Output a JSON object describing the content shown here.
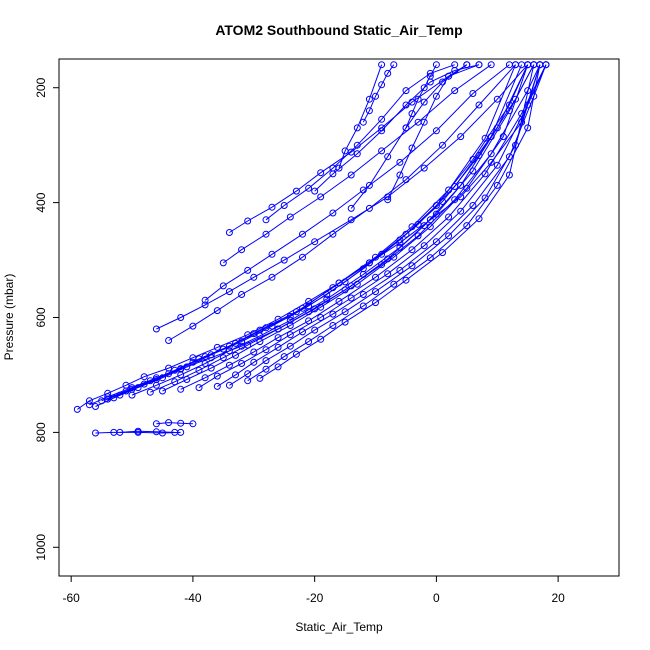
{
  "chart_data": {
    "type": "line",
    "title": "ATOM2 Southbound Static_Air_Temp",
    "xlabel": "Static_Air_Temp",
    "ylabel": "Pressure (mbar)",
    "xlim": [
      -62,
      30
    ],
    "ylim": [
      1050,
      150
    ],
    "y_reversed": true,
    "x_ticks": [
      "-60",
      "-40",
      "-20",
      "0",
      "20"
    ],
    "x_tick_values": [
      -60,
      -40,
      -20,
      0,
      20
    ],
    "y_ticks": [
      "200",
      "400",
      "600",
      "800",
      "1000"
    ],
    "y_tick_values": [
      200,
      400,
      600,
      800,
      1000
    ],
    "grid": false,
    "color": "#0000ff",
    "marker": "open-circle",
    "series": [
      {
        "x": [
          -59,
          -57,
          -54,
          -51,
          -48,
          -44,
          -40,
          -36,
          -31,
          -26,
          -21,
          -16,
          -11,
          -6,
          -1,
          4,
          9,
          14,
          17
        ],
        "y": [
          760,
          745,
          732,
          718,
          703,
          688,
          670,
          652,
          630,
          603,
          572,
          540,
          505,
          470,
          430,
          390,
          330,
          260,
          160
        ]
      },
      {
        "x": [
          -57,
          -54,
          -50,
          -46,
          -42,
          -37,
          -32,
          -26,
          -20,
          -14,
          -8,
          -2,
          4,
          10,
          15
        ],
        "y": [
          752,
          738,
          722,
          705,
          690,
          670,
          650,
          620,
          585,
          545,
          498,
          440,
          370,
          270,
          160
        ]
      },
      {
        "x": [
          -55,
          -51,
          -47,
          -43,
          -39,
          -34,
          -29,
          -23,
          -17,
          -11,
          -5,
          1,
          7,
          13,
          16
        ],
        "y": [
          745,
          728,
          710,
          692,
          672,
          650,
          622,
          590,
          548,
          505,
          455,
          398,
          318,
          220,
          160
        ]
      },
      {
        "x": [
          -53,
          -49,
          -45,
          -41,
          -37,
          -32,
          -27,
          -21,
          -15,
          -9,
          -3,
          3,
          9,
          14
        ],
        "y": [
          740,
          722,
          705,
          686,
          665,
          642,
          615,
          580,
          538,
          490,
          438,
          372,
          285,
          160
        ]
      },
      {
        "x": [
          -56,
          -52,
          -48,
          -44,
          -40,
          -35,
          -30,
          -24,
          -18,
          -12,
          -6,
          0,
          6,
          12,
          15
        ],
        "y": [
          755,
          735,
          716,
          698,
          678,
          655,
          628,
          598,
          560,
          515,
          465,
          405,
          325,
          230,
          160
        ]
      },
      {
        "x": [
          -50,
          -46,
          -42,
          -38,
          -34,
          -29,
          -24,
          -18,
          -12,
          -6,
          0,
          6,
          12,
          16
        ],
        "y": [
          735,
          718,
          700,
          680,
          658,
          632,
          605,
          568,
          525,
          478,
          420,
          345,
          240,
          160
        ]
      },
      {
        "x": [
          -54,
          -50,
          -46,
          -42,
          -38,
          -33,
          -28,
          -22,
          -16,
          -10,
          -4,
          2,
          8,
          13
        ],
        "y": [
          742,
          725,
          708,
          689,
          668,
          645,
          618,
          584,
          540,
          495,
          442,
          378,
          288,
          160
        ]
      },
      {
        "x": [
          -47,
          -43,
          -39,
          -35,
          -31,
          -26,
          -21,
          -15,
          -9,
          -3,
          3,
          9,
          15,
          17
        ],
        "y": [
          730,
          712,
          692,
          670,
          648,
          620,
          590,
          552,
          508,
          458,
          395,
          315,
          205,
          160
        ]
      },
      {
        "x": [
          -45,
          -41,
          -37,
          -33,
          -29,
          -24,
          -19,
          -13,
          -7,
          -1,
          5,
          11,
          15
        ],
        "y": [
          728,
          708,
          688,
          666,
          642,
          614,
          582,
          542,
          495,
          442,
          375,
          285,
          160
        ]
      },
      {
        "x": [
          -42,
          -38,
          -34,
          -30,
          -26,
          -21,
          -16,
          -10,
          -4,
          2,
          8,
          14,
          18
        ],
        "y": [
          725,
          705,
          683,
          660,
          635,
          606,
          572,
          530,
          482,
          425,
          350,
          245,
          160
        ]
      },
      {
        "x": [
          -39,
          -36,
          -32,
          -28,
          -24,
          -19,
          -14,
          -8,
          -2,
          4,
          10,
          15,
          18
        ],
        "y": [
          722,
          702,
          680,
          656,
          630,
          600,
          566,
          524,
          475,
          415,
          335,
          230,
          160
        ]
      },
      {
        "x": [
          -36,
          -33,
          -30,
          -26,
          -22,
          -17,
          -12,
          -6,
          0,
          6,
          12,
          16,
          18
        ],
        "y": [
          720,
          700,
          678,
          652,
          625,
          594,
          560,
          518,
          468,
          405,
          320,
          215,
          160
        ]
      },
      {
        "x": [
          -34,
          -31,
          -28,
          -24,
          -20,
          -15,
          -10,
          -4,
          2,
          8,
          13,
          17
        ],
        "y": [
          718,
          698,
          675,
          650,
          622,
          590,
          555,
          510,
          458,
          392,
          300,
          160
        ]
      },
      {
        "x": [
          -31,
          -28,
          -25,
          -21,
          -17,
          -12,
          -7,
          -1,
          5,
          10,
          15,
          17
        ],
        "y": [
          710,
          690,
          668,
          642,
          614,
          580,
          542,
          496,
          440,
          370,
          270,
          160
        ]
      },
      {
        "x": [
          -29,
          -26,
          -23,
          -19,
          -15,
          -10,
          -5,
          1,
          7,
          12,
          16
        ],
        "y": [
          706,
          686,
          664,
          638,
          608,
          574,
          535,
          487,
          428,
          352,
          160
        ]
      },
      {
        "x": [
          -52,
          -49,
          -46,
          -43
        ],
        "y": [
          800,
          798,
          799,
          800
        ]
      },
      {
        "x": [
          -56,
          -53,
          -49,
          -45,
          -42
        ],
        "y": [
          801,
          800,
          800,
          801,
          800
        ]
      },
      {
        "x": [
          -46,
          -44,
          -42,
          -40
        ],
        "y": [
          785,
          783,
          784,
          785
        ]
      },
      {
        "x": [
          -46,
          -42,
          -38,
          -34,
          -30,
          -25,
          -20,
          -14,
          -8,
          -2,
          4,
          10,
          15
        ],
        "y": [
          620,
          600,
          578,
          555,
          530,
          500,
          468,
          430,
          390,
          340,
          285,
          220,
          160
        ]
      },
      {
        "x": [
          -44,
          -40,
          -36,
          -32,
          -27,
          -22,
          -17,
          -11,
          -5,
          1,
          7,
          13
        ],
        "y": [
          640,
          615,
          588,
          560,
          530,
          495,
          455,
          410,
          360,
          300,
          230,
          160
        ]
      },
      {
        "x": [
          -38,
          -35,
          -31,
          -27,
          -22,
          -17,
          -12,
          -6,
          0,
          6,
          12
        ],
        "y": [
          570,
          545,
          518,
          490,
          455,
          418,
          378,
          330,
          275,
          210,
          160
        ]
      },
      {
        "x": [
          -35,
          -32,
          -28,
          -24,
          -19,
          -14,
          -9,
          -3,
          3,
          9
        ],
        "y": [
          505,
          482,
          455,
          425,
          390,
          352,
          310,
          260,
          205,
          160
        ]
      },
      {
        "x": [
          -34,
          -31,
          -27,
          -23,
          -19,
          -14,
          -9,
          -4,
          2,
          7
        ],
        "y": [
          452,
          432,
          408,
          380,
          348,
          312,
          270,
          225,
          180,
          160
        ]
      },
      {
        "x": [
          -28,
          -25,
          -21,
          -17,
          -13,
          -9,
          -5,
          -1,
          3
        ],
        "y": [
          430,
          405,
          375,
          340,
          300,
          255,
          205,
          175,
          160
        ]
      },
      {
        "x": [
          -20,
          -17,
          -13,
          -9,
          -5,
          -1,
          3,
          7
        ],
        "y": [
          380,
          350,
          315,
          275,
          230,
          190,
          170,
          160
        ]
      },
      {
        "x": [
          -14,
          -11,
          -8,
          -5,
          -2,
          1,
          5
        ],
        "y": [
          410,
          370,
          320,
          270,
          225,
          190,
          160
        ]
      },
      {
        "x": [
          -8,
          -6,
          -4,
          -2,
          0,
          2,
          5
        ],
        "y": [
          395,
          352,
          305,
          260,
          215,
          180,
          160
        ]
      },
      {
        "x": [
          -12,
          -11,
          -10,
          -9,
          -8,
          -7
        ],
        "y": [
          260,
          240,
          215,
          195,
          175,
          160
        ]
      },
      {
        "x": [
          -5,
          -4,
          -3,
          -2,
          -1,
          0
        ],
        "y": [
          270,
          245,
          220,
          200,
          180,
          160
        ]
      },
      {
        "x": [
          -16,
          -15,
          -13,
          -11,
          -9
        ],
        "y": [
          340,
          310,
          270,
          220,
          160
        ]
      }
    ]
  }
}
